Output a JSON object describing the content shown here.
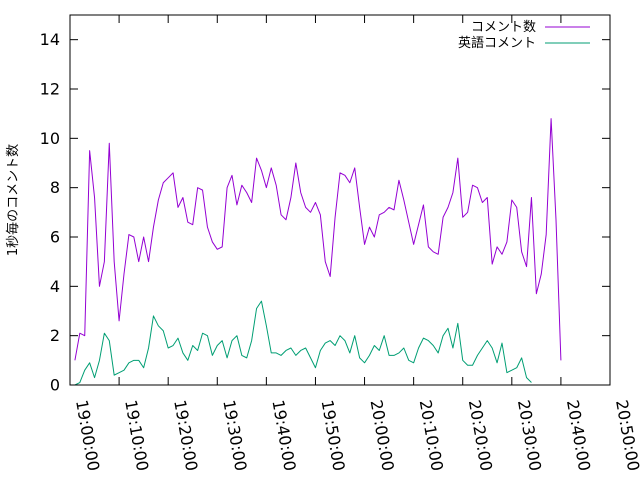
{
  "chart_data": {
    "type": "line",
    "title": "",
    "xlabel": "",
    "ylabel": "1秒毎のコメント数",
    "xlim": [
      "19:00:00",
      "20:50:00"
    ],
    "ylim": [
      0,
      15
    ],
    "grid": false,
    "legend": "top-right",
    "xticks": [
      "19:00:00",
      "19:10:00",
      "19:20:00",
      "19:30:00",
      "19:40:00",
      "19:50:00",
      "20:00:00",
      "20:10:00",
      "20:20:00",
      "20:30:00",
      "20:40:00",
      "20:50:00"
    ],
    "yticks": [
      0,
      2,
      4,
      6,
      8,
      10,
      12,
      14
    ],
    "series": [
      {
        "name": "コメント数",
        "color": "#9400d3",
        "points": [
          [
            "19:01:00",
            1.0
          ],
          [
            "19:02:00",
            2.1
          ],
          [
            "19:03:00",
            2.0
          ],
          [
            "19:04:00",
            9.5
          ],
          [
            "19:05:00",
            7.6
          ],
          [
            "19:06:00",
            4.0
          ],
          [
            "19:07:00",
            5.0
          ],
          [
            "19:08:00",
            9.8
          ],
          [
            "19:09:00",
            5.0
          ],
          [
            "19:10:00",
            2.6
          ],
          [
            "19:11:00",
            4.5
          ],
          [
            "19:12:00",
            6.1
          ],
          [
            "19:13:00",
            6.0
          ],
          [
            "19:14:00",
            5.0
          ],
          [
            "19:15:00",
            6.0
          ],
          [
            "19:16:00",
            5.0
          ],
          [
            "19:17:00",
            6.4
          ],
          [
            "19:18:00",
            7.5
          ],
          [
            "19:19:00",
            8.2
          ],
          [
            "19:20:00",
            8.4
          ],
          [
            "19:21:00",
            8.6
          ],
          [
            "19:22:00",
            7.2
          ],
          [
            "19:23:00",
            7.6
          ],
          [
            "19:24:00",
            6.6
          ],
          [
            "19:25:00",
            6.5
          ],
          [
            "19:26:00",
            8.0
          ],
          [
            "19:27:00",
            7.9
          ],
          [
            "19:28:00",
            6.4
          ],
          [
            "19:29:00",
            5.8
          ],
          [
            "19:30:00",
            5.5
          ],
          [
            "19:31:00",
            5.6
          ],
          [
            "19:32:00",
            8.0
          ],
          [
            "19:33:00",
            8.5
          ],
          [
            "19:34:00",
            7.3
          ],
          [
            "19:35:00",
            8.1
          ],
          [
            "19:36:00",
            7.8
          ],
          [
            "19:37:00",
            7.4
          ],
          [
            "19:38:00",
            9.2
          ],
          [
            "19:39:00",
            8.7
          ],
          [
            "19:40:00",
            8.0
          ],
          [
            "19:41:00",
            8.8
          ],
          [
            "19:42:00",
            8.1
          ],
          [
            "19:43:00",
            6.9
          ],
          [
            "19:44:00",
            6.7
          ],
          [
            "19:45:00",
            7.6
          ],
          [
            "19:46:00",
            9.0
          ],
          [
            "19:47:00",
            7.8
          ],
          [
            "19:48:00",
            7.2
          ],
          [
            "19:49:00",
            7.0
          ],
          [
            "19:50:00",
            7.4
          ],
          [
            "19:51:00",
            6.9
          ],
          [
            "19:52:00",
            5.0
          ],
          [
            "19:53:00",
            4.4
          ],
          [
            "19:54:00",
            6.8
          ],
          [
            "19:55:00",
            8.6
          ],
          [
            "19:56:00",
            8.5
          ],
          [
            "19:57:00",
            8.2
          ],
          [
            "19:58:00",
            8.8
          ],
          [
            "19:59:00",
            7.2
          ],
          [
            "20:00:00",
            5.7
          ],
          [
            "20:01:00",
            6.4
          ],
          [
            "20:02:00",
            6.0
          ],
          [
            "20:03:00",
            6.9
          ],
          [
            "20:04:00",
            7.0
          ],
          [
            "20:05:00",
            7.2
          ],
          [
            "20:06:00",
            7.1
          ],
          [
            "20:07:00",
            8.3
          ],
          [
            "20:08:00",
            7.5
          ],
          [
            "20:09:00",
            6.6
          ],
          [
            "20:10:00",
            5.7
          ],
          [
            "20:11:00",
            6.5
          ],
          [
            "20:12:00",
            7.3
          ],
          [
            "20:13:00",
            5.6
          ],
          [
            "20:14:00",
            5.4
          ],
          [
            "20:15:00",
            5.3
          ],
          [
            "20:16:00",
            6.8
          ],
          [
            "20:17:00",
            7.2
          ],
          [
            "20:18:00",
            7.8
          ],
          [
            "20:19:00",
            9.2
          ],
          [
            "20:20:00",
            6.8
          ],
          [
            "20:21:00",
            7.0
          ],
          [
            "20:22:00",
            8.1
          ],
          [
            "20:23:00",
            8.0
          ],
          [
            "20:24:00",
            7.4
          ],
          [
            "20:25:00",
            7.6
          ],
          [
            "20:26:00",
            4.9
          ],
          [
            "20:27:00",
            5.6
          ],
          [
            "20:28:00",
            5.3
          ],
          [
            "20:29:00",
            5.8
          ],
          [
            "20:30:00",
            7.5
          ],
          [
            "20:31:00",
            7.2
          ],
          [
            "20:32:00",
            5.4
          ],
          [
            "20:33:00",
            4.8
          ],
          [
            "20:34:00",
            7.6
          ],
          [
            "20:35:00",
            3.7
          ],
          [
            "20:36:00",
            4.5
          ],
          [
            "20:37:00",
            6.1
          ],
          [
            "20:38:00",
            10.8
          ],
          [
            "20:39:00",
            6.7
          ],
          [
            "20:40:00",
            1.0
          ]
        ]
      },
      {
        "name": "英語コメント",
        "color": "#009e73",
        "points": [
          [
            "19:01:00",
            0.0
          ],
          [
            "19:02:00",
            0.1
          ],
          [
            "19:03:00",
            0.6
          ],
          [
            "19:04:00",
            0.9
          ],
          [
            "19:05:00",
            0.3
          ],
          [
            "19:06:00",
            1.0
          ],
          [
            "19:07:00",
            2.1
          ],
          [
            "19:08:00",
            1.8
          ],
          [
            "19:09:00",
            0.4
          ],
          [
            "19:10:00",
            0.5
          ],
          [
            "19:11:00",
            0.6
          ],
          [
            "19:12:00",
            0.9
          ],
          [
            "19:13:00",
            1.0
          ],
          [
            "19:14:00",
            1.0
          ],
          [
            "19:15:00",
            0.7
          ],
          [
            "19:16:00",
            1.5
          ],
          [
            "19:17:00",
            2.8
          ],
          [
            "19:18:00",
            2.4
          ],
          [
            "19:19:00",
            2.2
          ],
          [
            "19:20:00",
            1.5
          ],
          [
            "19:21:00",
            1.6
          ],
          [
            "19:22:00",
            1.9
          ],
          [
            "19:23:00",
            1.3
          ],
          [
            "19:24:00",
            1.0
          ],
          [
            "19:25:00",
            1.6
          ],
          [
            "19:26:00",
            1.4
          ],
          [
            "19:27:00",
            2.1
          ],
          [
            "19:28:00",
            2.0
          ],
          [
            "19:29:00",
            1.2
          ],
          [
            "19:30:00",
            1.6
          ],
          [
            "19:31:00",
            1.8
          ],
          [
            "19:32:00",
            1.1
          ],
          [
            "19:33:00",
            1.8
          ],
          [
            "19:34:00",
            2.0
          ],
          [
            "19:35:00",
            1.2
          ],
          [
            "19:36:00",
            1.1
          ],
          [
            "19:37:00",
            1.8
          ],
          [
            "19:38:00",
            3.1
          ],
          [
            "19:39:00",
            3.4
          ],
          [
            "19:40:00",
            2.4
          ],
          [
            "19:41:00",
            1.3
          ],
          [
            "19:42:00",
            1.3
          ],
          [
            "19:43:00",
            1.2
          ],
          [
            "19:44:00",
            1.4
          ],
          [
            "19:45:00",
            1.5
          ],
          [
            "19:46:00",
            1.2
          ],
          [
            "19:47:00",
            1.4
          ],
          [
            "19:48:00",
            1.5
          ],
          [
            "19:49:00",
            1.1
          ],
          [
            "19:50:00",
            0.7
          ],
          [
            "19:51:00",
            1.4
          ],
          [
            "19:52:00",
            1.7
          ],
          [
            "19:53:00",
            1.8
          ],
          [
            "19:54:00",
            1.6
          ],
          [
            "19:55:00",
            2.0
          ],
          [
            "19:56:00",
            1.8
          ],
          [
            "19:57:00",
            1.3
          ],
          [
            "19:58:00",
            2.0
          ],
          [
            "19:59:00",
            1.1
          ],
          [
            "20:00:00",
            0.9
          ],
          [
            "20:01:00",
            1.2
          ],
          [
            "20:02:00",
            1.6
          ],
          [
            "20:03:00",
            1.4
          ],
          [
            "20:04:00",
            2.0
          ],
          [
            "20:05:00",
            1.2
          ],
          [
            "20:06:00",
            1.2
          ],
          [
            "20:07:00",
            1.3
          ],
          [
            "20:08:00",
            1.5
          ],
          [
            "20:09:00",
            1.0
          ],
          [
            "20:10:00",
            0.9
          ],
          [
            "20:11:00",
            1.5
          ],
          [
            "20:12:00",
            1.9
          ],
          [
            "20:13:00",
            1.8
          ],
          [
            "20:14:00",
            1.6
          ],
          [
            "20:15:00",
            1.3
          ],
          [
            "20:16:00",
            2.0
          ],
          [
            "20:17:00",
            2.3
          ],
          [
            "20:18:00",
            1.5
          ],
          [
            "20:19:00",
            2.5
          ],
          [
            "20:20:00",
            1.0
          ],
          [
            "20:21:00",
            0.8
          ],
          [
            "20:22:00",
            0.8
          ],
          [
            "20:23:00",
            1.2
          ],
          [
            "20:24:00",
            1.5
          ],
          [
            "20:25:00",
            1.8
          ],
          [
            "20:26:00",
            1.5
          ],
          [
            "20:27:00",
            0.9
          ],
          [
            "20:28:00",
            1.7
          ],
          [
            "20:29:00",
            0.5
          ],
          [
            "20:30:00",
            0.6
          ],
          [
            "20:31:00",
            0.7
          ],
          [
            "20:32:00",
            1.1
          ],
          [
            "20:33:00",
            0.3
          ],
          [
            "20:34:00",
            0.1
          ]
        ]
      }
    ]
  }
}
